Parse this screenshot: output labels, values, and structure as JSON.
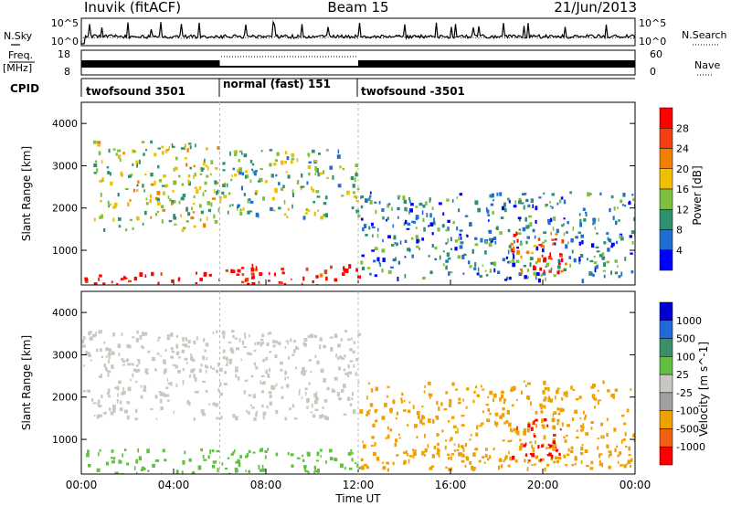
{
  "header": {
    "station": "Inuvik (fitACF)",
    "beam": "Beam 15",
    "date": "21/Jun/2013"
  },
  "panels": {
    "nsky": {
      "label": "N.Sky",
      "right_label": "N.Search",
      "ticks_left": [
        "10^5",
        "10^0"
      ],
      "ticks_right": [
        "10^5",
        "10^0"
      ]
    },
    "freq": {
      "label_line1": "Freq.",
      "label_line2": "[MHz]",
      "right_label": "Nave",
      "ticks_left": [
        "18",
        "8"
      ],
      "ticks_right": [
        "60",
        "0"
      ]
    },
    "cpid": {
      "label": "CPID",
      "segments": [
        {
          "name": "twofsound 3501",
          "start": 0,
          "end": 6
        },
        {
          "name": "normal (fast) 151",
          "start": 6,
          "end": 12
        },
        {
          "name": "twofsound -3501",
          "start": 12,
          "end": 24
        }
      ]
    }
  },
  "colors": {
    "ground_scatter": "#c8c8c0",
    "power_scale": [
      "#0000ff",
      "#1f6fd0",
      "#2f9070",
      "#7fbf3f",
      "#f0c000",
      "#f08000",
      "#f04010",
      "#ff0000"
    ],
    "velocity_scale": [
      "#0000d0",
      "#206ad8",
      "#3a8f6a",
      "#60c040",
      "#c8c8c0",
      "#a0a0a0",
      "#f0a000",
      "#f06010",
      "#ff0000"
    ]
  },
  "chart_data": [
    {
      "type": "heatmap",
      "title": "Power",
      "xlabel": "",
      "ylabel": "Slant Range [km]",
      "xlim": [
        "00:00",
        "24:00"
      ],
      "ylim": [
        180,
        4500
      ],
      "x_ticks": [
        "00:00",
        "04:00",
        "08:00",
        "12:00",
        "16:00",
        "20:00",
        "00:00"
      ],
      "y_ticks": [
        "1000",
        "2000",
        "3000",
        "4000"
      ],
      "colorbar": {
        "label": "Power [dB]",
        "ticks": [
          "4",
          "8",
          "12",
          "16",
          "20",
          "24",
          "28"
        ],
        "range": [
          0,
          30
        ]
      },
      "regions": [
        {
          "hours": [
            0,
            6
          ],
          "range_km": [
            200,
            500
          ],
          "value": 30
        },
        {
          "hours": [
            6,
            12
          ],
          "range_km": [
            200,
            700
          ],
          "value": 28
        },
        {
          "hours": [
            0.5,
            6
          ],
          "range_km": [
            1500,
            3600
          ],
          "value": 14
        },
        {
          "hours": [
            6,
            12
          ],
          "range_km": [
            1800,
            3400
          ],
          "value": 12
        },
        {
          "hours": [
            12,
            24
          ],
          "range_km": [
            300,
            2400
          ],
          "value": 8
        },
        {
          "hours": [
            18.5,
            21
          ],
          "range_km": [
            500,
            1500
          ],
          "value": 24
        }
      ]
    },
    {
      "type": "heatmap",
      "title": "Velocity",
      "xlabel": "Time UT",
      "ylabel": "Slant Range [km]",
      "xlim": [
        "00:00",
        "24:00"
      ],
      "ylim": [
        180,
        4500
      ],
      "x_ticks": [
        "00:00",
        "04:00",
        "08:00",
        "12:00",
        "16:00",
        "20:00",
        "00:00"
      ],
      "y_ticks": [
        "1000",
        "2000",
        "3000",
        "4000"
      ],
      "colorbar": {
        "label": "Velocity [m s^-1]",
        "ticks": [
          "1000",
          "500",
          "100",
          "25",
          "-25",
          "-100",
          "-500",
          "-1000"
        ],
        "range": [
          -1000,
          1000
        ]
      },
      "regions": [
        {
          "hours": [
            0,
            12
          ],
          "range_km": [
            1500,
            3600
          ],
          "value": 0
        },
        {
          "hours": [
            0,
            12
          ],
          "range_km": [
            200,
            800
          ],
          "value": 50
        },
        {
          "hours": [
            12,
            24
          ],
          "range_km": [
            300,
            2400
          ],
          "value": -300
        },
        {
          "hours": [
            18.5,
            21
          ],
          "range_km": [
            500,
            1500
          ],
          "value": -600
        }
      ]
    }
  ]
}
